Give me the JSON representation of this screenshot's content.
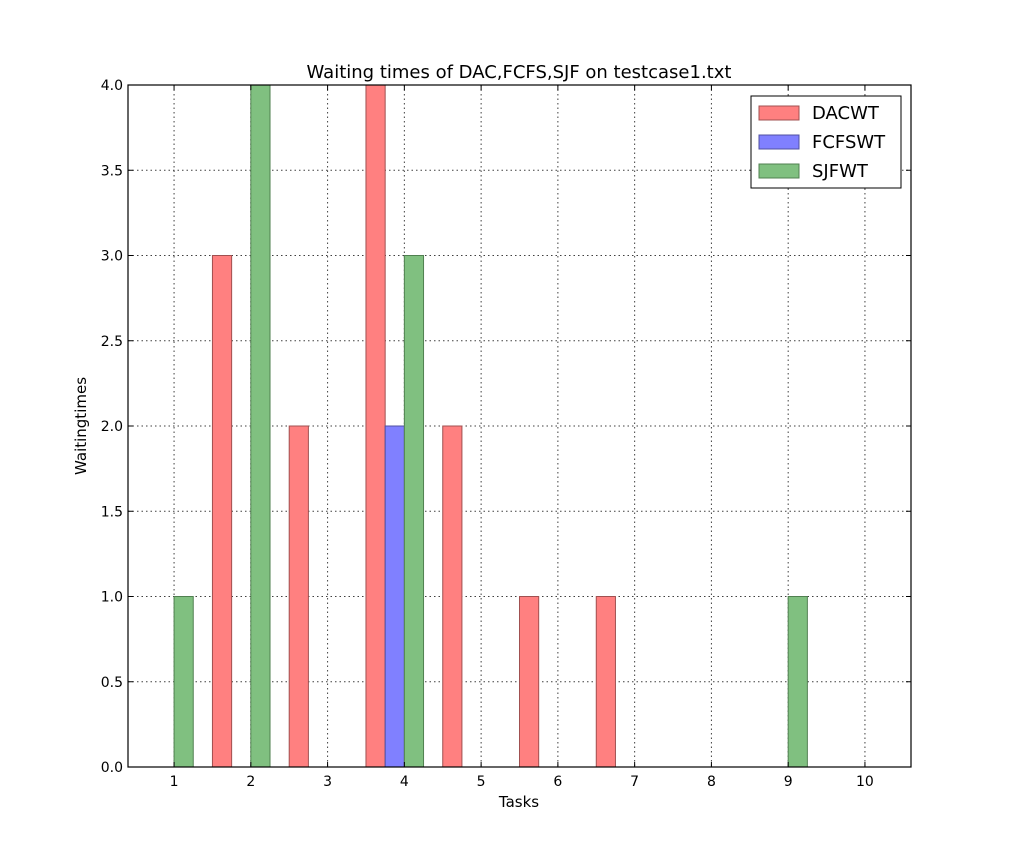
{
  "chart_data": {
    "type": "bar",
    "title": "Waiting times of DAC,FCFS,SJF on testcase1.txt",
    "xlabel": "Tasks",
    "ylabel": "Waitingtimes",
    "categories": [
      "1",
      "2",
      "3",
      "4",
      "5",
      "6",
      "7",
      "8",
      "9",
      "10"
    ],
    "xlim": [
      0.4,
      10.6
    ],
    "ylim": [
      0,
      4.0
    ],
    "yticks": [
      "0.0",
      "0.5",
      "1.0",
      "1.5",
      "2.0",
      "2.5",
      "3.0",
      "3.5",
      "4.0"
    ],
    "grid": true,
    "legend_position": "top-right",
    "series": [
      {
        "name": "DACWT",
        "color": "#ff8080",
        "stroke": "#a05050",
        "values": [
          0,
          3,
          2,
          4,
          2,
          1,
          1,
          0,
          0,
          0
        ]
      },
      {
        "name": "FCFSWT",
        "color": "#8080ff",
        "stroke": "#5050a0",
        "values": [
          0,
          0,
          0,
          2,
          0,
          0,
          0,
          0,
          0,
          0
        ]
      },
      {
        "name": "SJFWT",
        "color": "#80c080",
        "stroke": "#508050",
        "values": [
          1,
          4,
          0,
          3,
          0,
          0,
          0,
          0,
          1,
          0
        ]
      }
    ]
  }
}
